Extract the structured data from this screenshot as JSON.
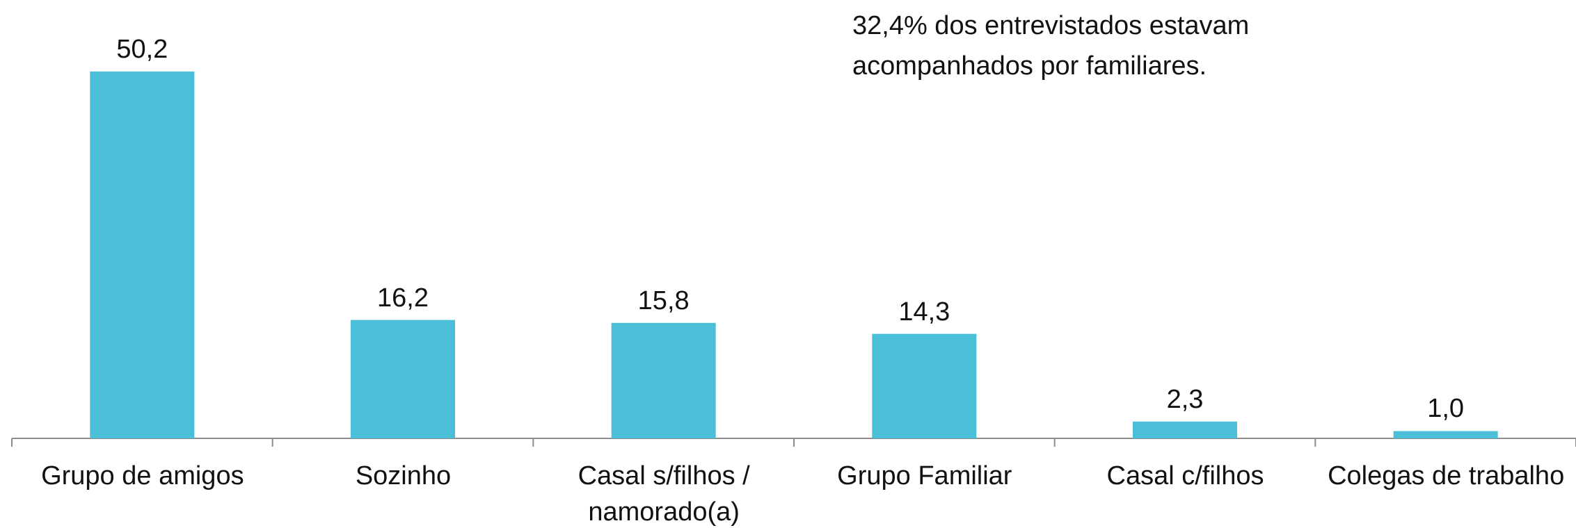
{
  "chart_data": {
    "type": "bar",
    "annotation": "32,4% dos entrevistados estavam acompanhados por familiares.",
    "categories": [
      "Grupo de amigos",
      "Sozinho",
      "Casal s/filhos / namorado(a)",
      "Grupo Familiar",
      "Casal c/filhos",
      "Colegas de trabalho"
    ],
    "values": [
      50.2,
      16.2,
      15.8,
      14.3,
      2.3,
      1.0
    ],
    "value_labels": [
      "50,2",
      "16,2",
      "15,8",
      "14,3",
      "2,3",
      "1,0"
    ],
    "color": "#4bbfd8"
  }
}
